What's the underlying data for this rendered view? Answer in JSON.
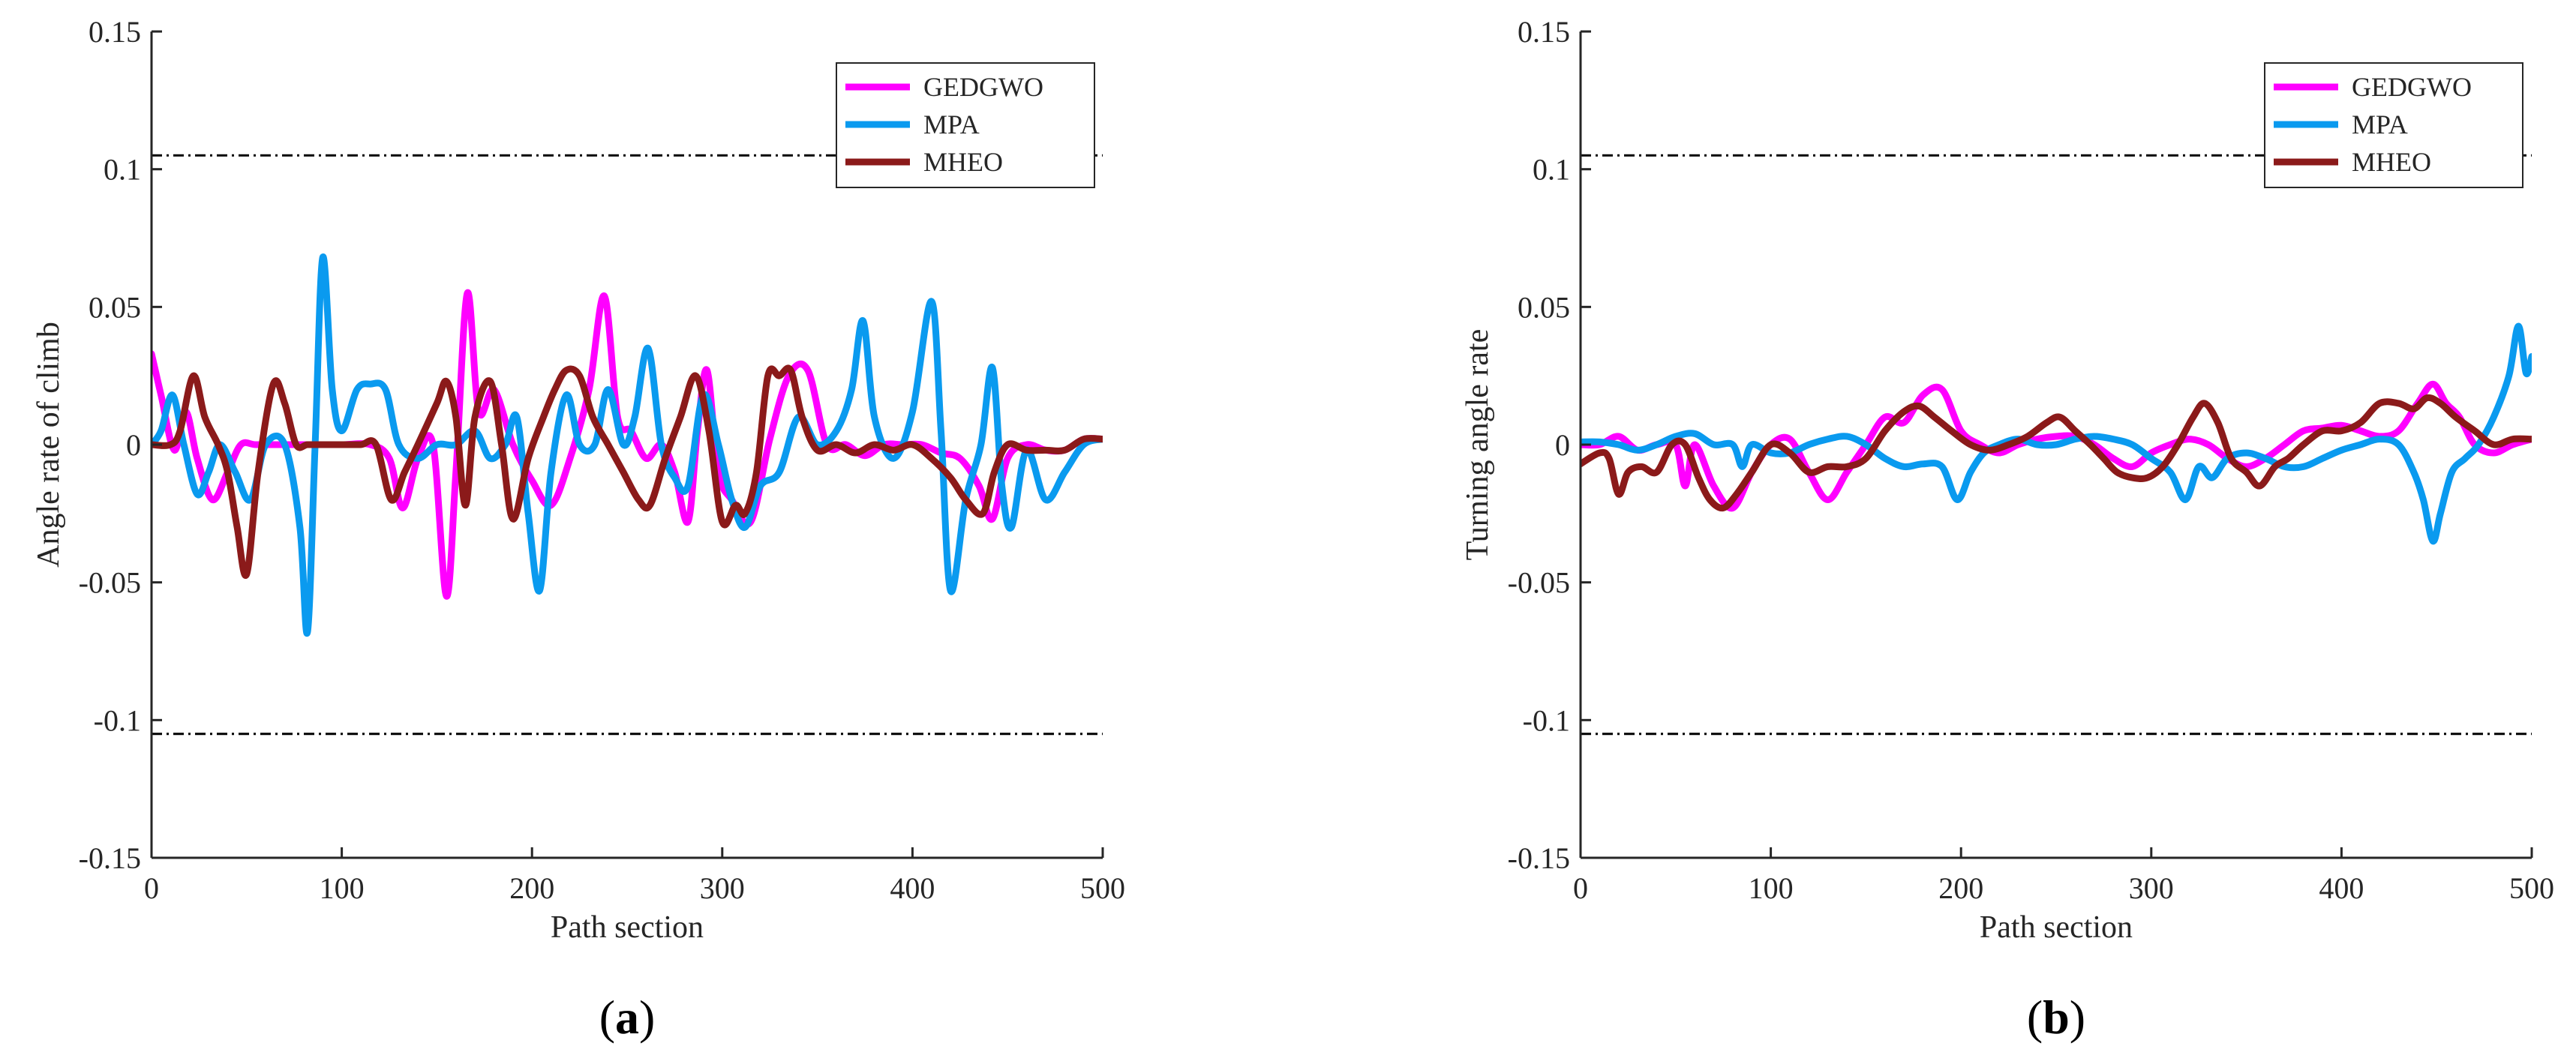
{
  "colors": {
    "GEDGWO": "#ff00ff",
    "MPA": "#0a9aef",
    "MHEO": "#8b1a1a",
    "axis": "#262626",
    "threshold": "#000000"
  },
  "chart_data": [
    {
      "type": "line",
      "panel_label": "(a)",
      "panel_letter": "a",
      "title": "",
      "xlabel": "Path section",
      "ylabel": "Angle rate of climb",
      "xlim": [
        0,
        500
      ],
      "ylim": [
        -0.15,
        0.15
      ],
      "xticks": [
        0,
        100,
        200,
        300,
        400,
        500
      ],
      "xtick_labels": [
        "0",
        "100",
        "200",
        "300",
        "400",
        "500"
      ],
      "yticks": [
        0.15,
        0.1,
        0.05,
        0,
        -0.05,
        -0.1,
        -0.15
      ],
      "ytick_labels": [
        "0.15",
        "0.1",
        "0.05",
        "0",
        "-0.05",
        "-0.1",
        "-0.15"
      ],
      "thresholds": [
        0.105,
        -0.105
      ],
      "legend": {
        "position": "top-right",
        "entries": [
          "GEDGWO",
          "MPA",
          "MHEO"
        ]
      },
      "series": [
        {
          "name": "GEDGWO",
          "x": [
            0,
            5,
            12,
            18,
            24,
            32,
            40,
            47,
            55,
            70,
            85,
            100,
            115,
            125,
            132,
            140,
            148,
            155,
            160,
            166,
            172,
            180,
            190,
            200,
            210,
            220,
            230,
            238,
            245,
            252,
            260,
            268,
            275,
            282,
            287,
            292,
            298,
            305,
            315,
            325,
            335,
            345,
            355,
            365,
            375,
            385,
            395,
            405,
            415,
            425,
            435,
            442,
            450,
            460,
            470,
            480,
            490,
            500
          ],
          "values": [
            0.033,
            0.018,
            -0.002,
            0.012,
            -0.005,
            -0.02,
            -0.01,
            0.0,
            0.0,
            0.0,
            0.0,
            0.0,
            0.0,
            -0.005,
            -0.023,
            -0.005,
            0.0,
            -0.055,
            -0.01,
            0.055,
            0.012,
            0.02,
            0.0,
            -0.013,
            -0.022,
            -0.005,
            0.02,
            0.054,
            0.01,
            0.005,
            -0.005,
            0.0,
            -0.01,
            -0.028,
            0.005,
            0.027,
            -0.01,
            -0.02,
            -0.028,
            0.002,
            0.025,
            0.027,
            0.0,
            0.0,
            -0.004,
            0.0,
            0.0,
            0.0,
            -0.003,
            -0.005,
            -0.015,
            -0.027,
            -0.005,
            0.0,
            -0.002,
            -0.002,
            0.002,
            0.002
          ]
        },
        {
          "name": "MPA",
          "x": [
            0,
            5,
            11,
            17,
            24,
            30,
            36,
            44,
            52,
            60,
            70,
            78,
            82,
            86,
            90,
            95,
            100,
            108,
            115,
            123,
            130,
            140,
            150,
            160,
            170,
            178,
            186,
            192,
            198,
            204,
            210,
            218,
            225,
            233,
            240,
            248,
            254,
            261,
            268,
            275,
            282,
            290,
            298,
            305,
            312,
            320,
            330,
            340,
            350,
            360,
            368,
            374,
            380,
            390,
            400,
            410,
            415,
            420,
            428,
            436,
            442,
            447,
            452,
            460,
            470,
            480,
            490,
            500
          ],
          "values": [
            0.0,
            0.005,
            0.018,
            0.0,
            -0.018,
            -0.01,
            0.0,
            -0.01,
            -0.02,
            0.0,
            0.0,
            -0.03,
            -0.068,
            0.0,
            0.068,
            0.02,
            0.005,
            0.02,
            0.022,
            0.02,
            0.0,
            -0.005,
            0.0,
            0.0,
            0.005,
            -0.005,
            0.0,
            0.01,
            -0.025,
            -0.053,
            -0.01,
            0.018,
            0.0,
            0.0,
            0.02,
            0.0,
            0.01,
            0.035,
            0.0,
            -0.012,
            -0.015,
            0.018,
            0.0,
            -0.02,
            -0.03,
            -0.015,
            -0.01,
            0.01,
            0.0,
            0.005,
            0.02,
            0.045,
            0.01,
            -0.005,
            0.012,
            0.052,
            0.005,
            -0.053,
            -0.02,
            0.0,
            0.028,
            -0.015,
            -0.03,
            -0.002,
            -0.02,
            -0.01,
            0.0,
            0.002
          ]
        },
        {
          "name": "MHEO",
          "x": [
            0,
            10,
            15,
            22,
            28,
            35,
            40,
            45,
            50,
            56,
            64,
            70,
            76,
            82,
            90,
            100,
            110,
            118,
            126,
            133,
            140,
            150,
            155,
            160,
            165,
            170,
            178,
            184,
            190,
            198,
            206,
            212,
            218,
            225,
            232,
            240,
            248,
            256,
            262,
            270,
            278,
            286,
            293,
            300,
            307,
            312,
            318,
            324,
            330,
            336,
            342,
            350,
            360,
            370,
            380,
            390,
            400,
            410,
            420,
            428,
            437,
            443,
            450,
            460,
            470,
            480,
            490,
            500
          ],
          "values": [
            0.0,
            0.0,
            0.005,
            0.025,
            0.01,
            0.0,
            -0.01,
            -0.03,
            -0.047,
            -0.01,
            0.022,
            0.015,
            0.0,
            0.0,
            0.0,
            0.0,
            0.0,
            0.0,
            -0.02,
            -0.01,
            0.0,
            0.015,
            0.023,
            0.01,
            -0.022,
            0.01,
            0.023,
            0.0,
            -0.027,
            -0.005,
            0.01,
            0.02,
            0.027,
            0.025,
            0.01,
            0.0,
            -0.01,
            -0.02,
            -0.022,
            -0.005,
            0.01,
            0.025,
            0.005,
            -0.028,
            -0.022,
            -0.025,
            -0.01,
            0.025,
            0.025,
            0.027,
            0.01,
            -0.002,
            0.0,
            -0.003,
            0.0,
            -0.002,
            0.0,
            -0.005,
            -0.012,
            -0.02,
            -0.025,
            -0.01,
            0.0,
            -0.002,
            -0.002,
            -0.002,
            0.002,
            0.002
          ]
        }
      ]
    },
    {
      "type": "line",
      "panel_label": "(b)",
      "panel_letter": "b",
      "title": "",
      "xlabel": "Path section",
      "ylabel": "Turning angle rate",
      "xlim": [
        0,
        500
      ],
      "ylim": [
        -0.15,
        0.15
      ],
      "xticks": [
        0,
        100,
        200,
        300,
        400,
        500
      ],
      "xtick_labels": [
        "0",
        "100",
        "200",
        "300",
        "400",
        "500"
      ],
      "yticks": [
        0.15,
        0.1,
        0.05,
        0,
        -0.05,
        -0.1,
        -0.15
      ],
      "ytick_labels": [
        "0.15",
        "0.1",
        "0.05",
        "0",
        "-0.05",
        "-0.1",
        "-0.15"
      ],
      "thresholds": [
        0.105,
        -0.105
      ],
      "legend": {
        "position": "top-right",
        "entries": [
          "GEDGWO",
          "MPA",
          "MHEO"
        ]
      },
      "series": [
        {
          "name": "GEDGWO",
          "x": [
            0,
            10,
            20,
            30,
            40,
            50,
            55,
            60,
            70,
            80,
            90,
            100,
            110,
            120,
            130,
            140,
            150,
            160,
            170,
            180,
            190,
            200,
            210,
            220,
            230,
            240,
            250,
            260,
            270,
            280,
            290,
            300,
            310,
            320,
            330,
            340,
            350,
            360,
            370,
            380,
            390,
            400,
            410,
            420,
            430,
            440,
            448,
            455,
            462,
            470,
            480,
            490,
            500
          ],
          "values": [
            0.0,
            0.0,
            0.003,
            -0.002,
            0.0,
            0.0,
            -0.015,
            0.0,
            -0.015,
            -0.023,
            -0.01,
            0.0,
            0.002,
            -0.01,
            -0.02,
            -0.01,
            0.0,
            0.01,
            0.008,
            0.018,
            0.02,
            0.005,
            0.0,
            -0.003,
            0.0,
            0.002,
            0.003,
            0.003,
            0.0,
            -0.005,
            -0.008,
            -0.003,
            0.0,
            0.002,
            0.0,
            -0.005,
            -0.008,
            -0.005,
            0.0,
            0.005,
            0.006,
            0.007,
            0.005,
            0.003,
            0.005,
            0.015,
            0.022,
            0.015,
            0.01,
            0.0,
            -0.003,
            0.0,
            0.002
          ]
        },
        {
          "name": "MPA",
          "x": [
            0,
            10,
            20,
            30,
            40,
            50,
            60,
            70,
            80,
            85,
            90,
            100,
            110,
            120,
            130,
            140,
            150,
            160,
            170,
            180,
            190,
            198,
            205,
            212,
            220,
            230,
            240,
            250,
            260,
            270,
            280,
            290,
            300,
            310,
            318,
            325,
            332,
            340,
            350,
            360,
            370,
            380,
            390,
            400,
            410,
            420,
            430,
            438,
            443,
            448,
            452,
            458,
            465,
            472,
            480,
            488,
            493,
            497,
            500
          ],
          "values": [
            0.001,
            0.001,
            0.0,
            -0.002,
            0.0,
            0.003,
            0.004,
            0.0,
            0.0,
            -0.008,
            0.0,
            -0.003,
            -0.003,
            0.0,
            0.002,
            0.003,
            0.0,
            -0.005,
            -0.008,
            -0.007,
            -0.008,
            -0.02,
            -0.01,
            -0.003,
            0.0,
            0.002,
            0.0,
            0.0,
            0.002,
            0.003,
            0.002,
            0.0,
            -0.005,
            -0.01,
            -0.02,
            -0.008,
            -0.012,
            -0.005,
            -0.003,
            -0.005,
            -0.008,
            -0.008,
            -0.005,
            -0.002,
            0.0,
            0.002,
            0.0,
            -0.01,
            -0.02,
            -0.035,
            -0.025,
            -0.01,
            -0.005,
            0.0,
            0.01,
            0.025,
            0.043,
            0.026,
            0.032
          ]
        },
        {
          "name": "MHEO",
          "x": [
            0,
            10,
            15,
            20,
            25,
            32,
            40,
            48,
            55,
            62,
            68,
            75,
            82,
            90,
            100,
            110,
            120,
            130,
            140,
            150,
            160,
            170,
            178,
            186,
            195,
            205,
            215,
            225,
            235,
            245,
            252,
            260,
            268,
            275,
            282,
            290,
            298,
            306,
            314,
            322,
            328,
            335,
            342,
            350,
            357,
            365,
            372,
            380,
            390,
            400,
            410,
            420,
            430,
            438,
            445,
            452,
            460,
            470,
            480,
            490,
            500
          ],
          "values": [
            -0.007,
            -0.003,
            -0.005,
            -0.018,
            -0.01,
            -0.008,
            -0.01,
            0.0,
            0.0,
            -0.012,
            -0.02,
            -0.023,
            -0.018,
            -0.01,
            0.0,
            -0.003,
            -0.01,
            -0.008,
            -0.008,
            -0.005,
            0.005,
            0.012,
            0.014,
            0.01,
            0.005,
            0.0,
            -0.002,
            0.0,
            0.003,
            0.008,
            0.01,
            0.005,
            0.0,
            -0.005,
            -0.01,
            -0.012,
            -0.012,
            -0.008,
            0.0,
            0.01,
            0.015,
            0.008,
            -0.005,
            -0.01,
            -0.015,
            -0.008,
            -0.005,
            0.0,
            0.005,
            0.005,
            0.008,
            0.015,
            0.015,
            0.013,
            0.017,
            0.015,
            0.01,
            0.005,
            0.0,
            0.002,
            0.002
          ]
        }
      ]
    }
  ]
}
